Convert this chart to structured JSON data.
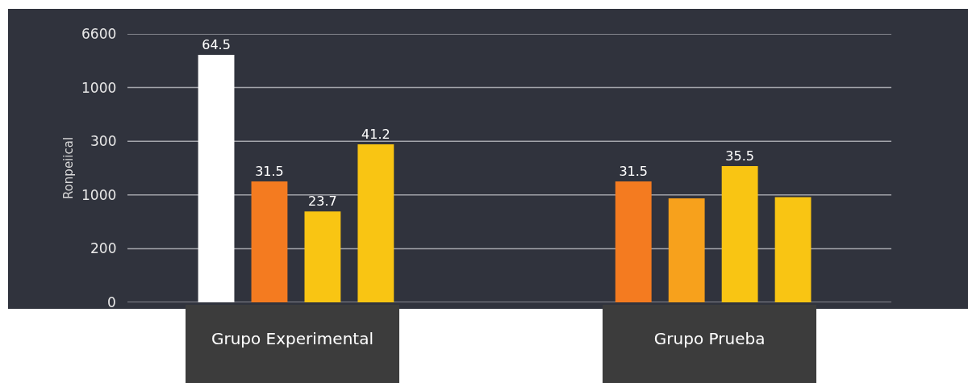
{
  "chart_data": {
    "type": "bar",
    "ylabel": "Ronpeiical",
    "categories": [
      "Grupo Experimental",
      "Grupo Prueba"
    ],
    "series": [
      {
        "colors": [
          "#ffffff",
          "#f47b20"
        ],
        "values": [
          64.5,
          31.5
        ],
        "value_labels": [
          "64.5",
          "31.5"
        ]
      },
      {
        "colors": [
          "#f47b20",
          "#f7a11c"
        ],
        "values": [
          31.5,
          27.1
        ],
        "value_labels": [
          "31.5",
          null
        ]
      },
      {
        "colors": [
          "#f9c513",
          "#f9c513"
        ],
        "values": [
          23.7,
          35.5
        ],
        "value_labels": [
          "23.7",
          "35.5"
        ]
      },
      {
        "colors": [
          "#f9c513",
          "#f9c513"
        ],
        "values": [
          41.2,
          27.4
        ],
        "value_labels": [
          "41.2",
          null
        ]
      }
    ],
    "annotations": [
      "6600",
      "1000",
      "300",
      "1000",
      "200",
      "0"
    ],
    "grid": "y"
  }
}
